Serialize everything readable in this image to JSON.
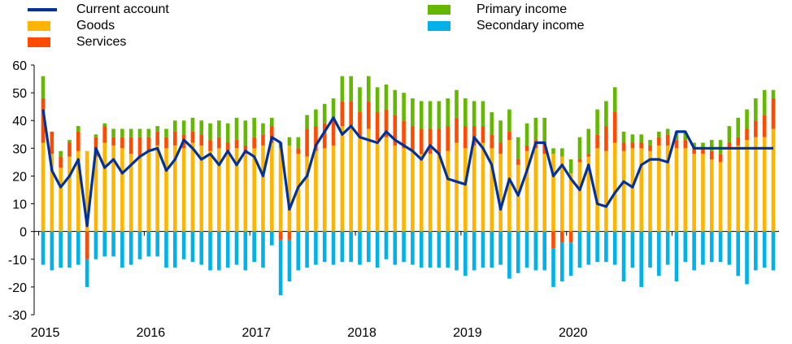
{
  "chart_data": {
    "type": "bar",
    "stacked": true,
    "x_start": "2015-01",
    "frequency": "monthly",
    "xticks": [
      "2015",
      "2016",
      "2017",
      "2018",
      "2019",
      "2020"
    ],
    "ylim": [
      -30,
      60
    ],
    "yticks": [
      -30,
      -20,
      -10,
      0,
      10,
      20,
      30,
      40,
      50,
      60
    ],
    "grid": false,
    "legend_position": "top",
    "series": [
      {
        "name": "Goods",
        "kind": "bar",
        "color": "#FFB400",
        "values": [
          32,
          28,
          23,
          27,
          29,
          29,
          27,
          32,
          31,
          30,
          28,
          27,
          29,
          31,
          30,
          31,
          30,
          32,
          31,
          29,
          30,
          28,
          30,
          28,
          30,
          31,
          32,
          30,
          31,
          28,
          27,
          29,
          30,
          31,
          38,
          38,
          34,
          37,
          33,
          34,
          31,
          30,
          29,
          28,
          28,
          28,
          29,
          32,
          30,
          31,
          32,
          30,
          28,
          33,
          24,
          29,
          30,
          28,
          28,
          27,
          21,
          25,
          27,
          30,
          29,
          32,
          29,
          30,
          30,
          29,
          31,
          31,
          30,
          30,
          28,
          28,
          26,
          25,
          30,
          31,
          33,
          34,
          34,
          37
        ]
      },
      {
        "name": "Services",
        "kind": "bar",
        "color": "#FF4B00",
        "values": [
          16,
          8,
          4,
          5,
          7,
          -10,
          7,
          6,
          3,
          4,
          6,
          7,
          5,
          5,
          4,
          5,
          5,
          4,
          4,
          4,
          4,
          4,
          3,
          3,
          4,
          4,
          6,
          -3,
          -3,
          2,
          10,
          9,
          9,
          9,
          9,
          9,
          9,
          10,
          10,
          10,
          11,
          10,
          9,
          9,
          9,
          9,
          9,
          9,
          8,
          7,
          6,
          5,
          4,
          3,
          2,
          2,
          3,
          4,
          -6,
          -4,
          -4,
          1,
          1,
          5,
          9,
          11,
          3,
          2,
          2,
          2,
          3,
          4,
          3,
          3,
          2,
          2,
          3,
          3,
          2,
          3,
          4,
          6,
          8,
          11
        ]
      },
      {
        "name": "Primary income",
        "kind": "bar",
        "color": "#65B800",
        "values": [
          8,
          0,
          2,
          1,
          2,
          0,
          1,
          1,
          3,
          3,
          3,
          3,
          3,
          2,
          3,
          4,
          5,
          5,
          5,
          6,
          6,
          7,
          8,
          9,
          7,
          4,
          3,
          2,
          3,
          4,
          5,
          6,
          7,
          8,
          9,
          9,
          9,
          9,
          9,
          9,
          9,
          10,
          10,
          10,
          10,
          10,
          10,
          10,
          10,
          9,
          9,
          8,
          8,
          8,
          8,
          8,
          8,
          9,
          2,
          3,
          5,
          8,
          9,
          9,
          9,
          9,
          4,
          3,
          3,
          2,
          2,
          2,
          3,
          3,
          2,
          2,
          4,
          5,
          6,
          7,
          7,
          8,
          9,
          3
        ]
      },
      {
        "name": "Secondary income",
        "kind": "bar",
        "color": "#00B1EA",
        "values": [
          -12,
          -14,
          -13,
          -13,
          -12,
          -10,
          -10,
          -9,
          -9,
          -13,
          -12,
          -10,
          -9,
          -9,
          -13,
          -13,
          -10,
          -11,
          -12,
          -14,
          -14,
          -13,
          -12,
          -14,
          -11,
          -13,
          -5,
          -20,
          -15,
          -14,
          -13,
          -12,
          -11,
          -12,
          -11,
          -11,
          -12,
          -11,
          -13,
          -10,
          -12,
          -11,
          -12,
          -13,
          -13,
          -13,
          -13,
          -14,
          -16,
          -14,
          -13,
          -13,
          -12,
          -17,
          -15,
          -13,
          -14,
          -14,
          -14,
          -14,
          -12,
          -13,
          -12,
          -11,
          -11,
          -12,
          -18,
          -13,
          -20,
          -13,
          -16,
          -12,
          -18,
          -11,
          -14,
          -12,
          -11,
          -11,
          -12,
          -16,
          -19,
          -14,
          -13,
          -14
        ]
      },
      {
        "name": "Current account",
        "kind": "line",
        "color": "#003299",
        "values": [
          44,
          22,
          16,
          20,
          26,
          2,
          30,
          23,
          26,
          21,
          24,
          27,
          29,
          30,
          22,
          26,
          33,
          30,
          26,
          28,
          24,
          29,
          24,
          29,
          27,
          20,
          34,
          32,
          8,
          16,
          20,
          31,
          36,
          41,
          35,
          38,
          34,
          33,
          32,
          36,
          33,
          31,
          29,
          26,
          31,
          28,
          19,
          18,
          17,
          34,
          30,
          24,
          8,
          19,
          13,
          22,
          32,
          32,
          20,
          24,
          19,
          15,
          24,
          10,
          9,
          14,
          18,
          16,
          24,
          26,
          26,
          25,
          36,
          36,
          30,
          30,
          30,
          30,
          30,
          30,
          30,
          30,
          30,
          30
        ]
      }
    ]
  },
  "legend": [
    {
      "label": "Current account",
      "color": "#003299",
      "kind": "line"
    },
    {
      "label": "Goods",
      "color": "#FFB400",
      "kind": "bar"
    },
    {
      "label": "Services",
      "color": "#FF4B00",
      "kind": "bar"
    },
    {
      "label": "Primary income",
      "color": "#65B800",
      "kind": "bar"
    },
    {
      "label": "Secondary income",
      "color": "#00B1EA",
      "kind": "bar"
    }
  ]
}
